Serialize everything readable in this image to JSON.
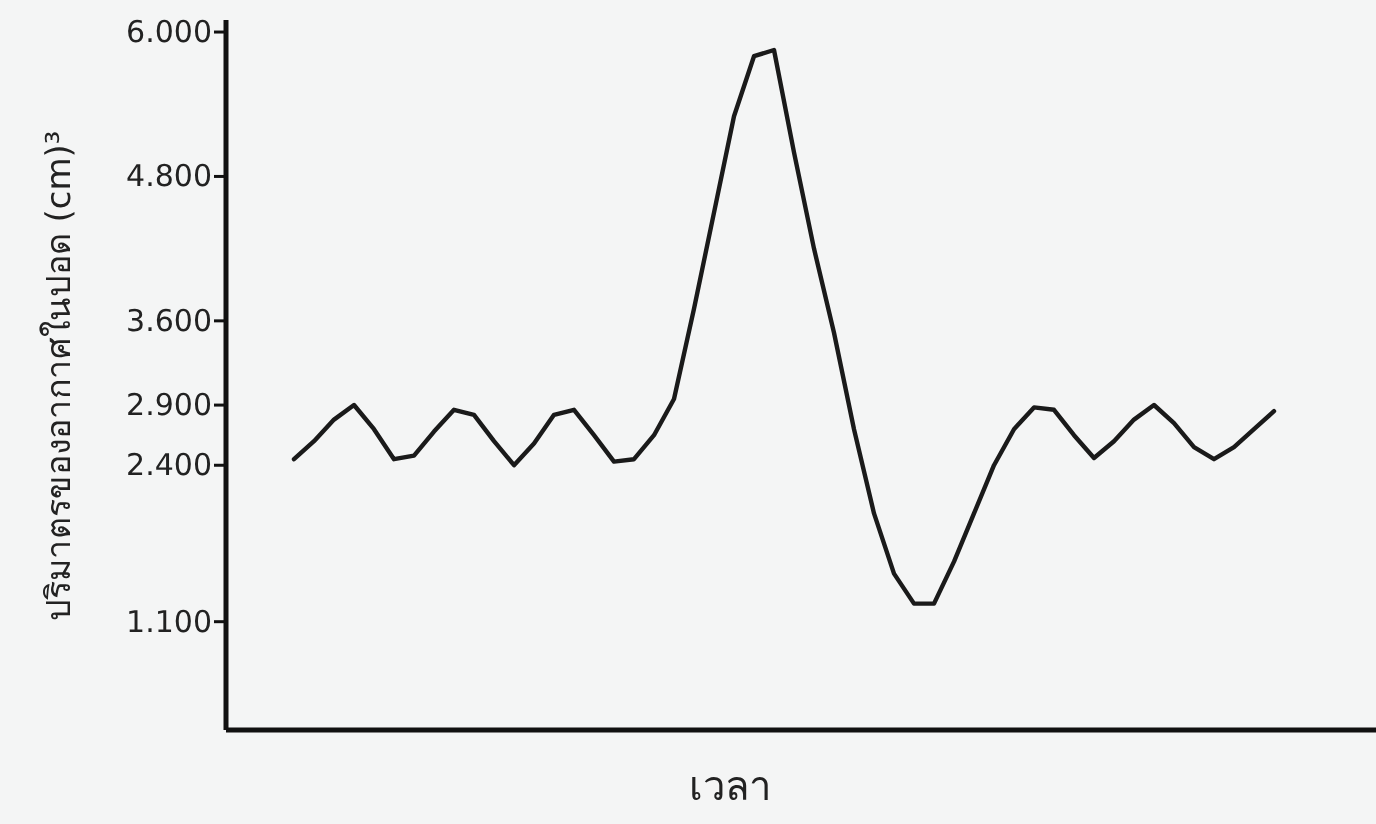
{
  "chart_data": {
    "type": "line",
    "xlabel": "เวลา",
    "ylabel": "ปริมาตรของอากาศในปอด (cm)³",
    "categories": [
      null,
      null,
      null,
      null,
      null,
      null,
      null,
      null,
      null,
      null,
      null,
      null,
      null,
      null,
      null,
      null,
      null,
      null,
      null,
      null,
      null,
      null,
      null,
      null,
      null,
      null,
      null,
      null,
      null,
      null,
      null,
      null,
      null,
      null,
      null,
      null,
      null,
      null,
      null,
      null,
      null,
      null,
      null,
      null,
      null,
      null,
      null,
      null,
      null,
      null
    ],
    "series": [
      {
        "color": "#1a1a1a",
        "values": [
          2450,
          2600,
          2780,
          2900,
          2700,
          2450,
          2480,
          2680,
          2860,
          2820,
          2600,
          2400,
          2580,
          2820,
          2860,
          2650,
          2430,
          2450,
          2650,
          2950,
          3700,
          4500,
          5300,
          5800,
          5850,
          5000,
          4200,
          3500,
          2700,
          2000,
          1500,
          1250,
          1250,
          1600,
          2000,
          2400,
          2700,
          2880,
          2860,
          2650,
          2460,
          2600,
          2780,
          2900,
          2750,
          2550,
          2450,
          2550,
          2700,
          2850
        ]
      }
    ],
    "ylim": [
      200,
      6100
    ],
    "yticks": [
      {
        "value": 1100,
        "label": "1.100"
      },
      {
        "value": 2400,
        "label": "2.400"
      },
      {
        "value": 2900,
        "label": "2.900"
      },
      {
        "value": 3600,
        "label": "3.600"
      },
      {
        "value": 4800,
        "label": "4.800"
      },
      {
        "value": 6000,
        "label": "6.000"
      }
    ]
  }
}
